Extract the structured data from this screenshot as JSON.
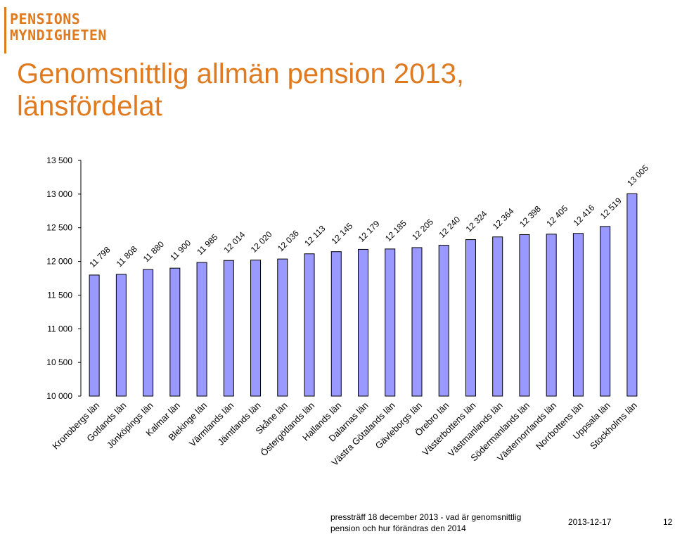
{
  "logo": {
    "line1": "PENSIONS",
    "line2": "MYNDIGHETEN"
  },
  "title": {
    "line1": "Genomsnittlig allmän pension 2013,",
    "line2": "länsfördelat"
  },
  "footer": {
    "text_line1": "pressträff 18 december 2013 - vad är genomsnittlig",
    "text_line2": "pension och hur förändras den 2014",
    "date": "2013-12-17",
    "page": "12"
  },
  "colors": {
    "accent": "#e07a1f",
    "bar_fill": "#9999ff",
    "bar_stroke": "#000000"
  },
  "chart_data": {
    "type": "bar",
    "categories": [
      "Kronobergs län",
      "Gotlands län",
      "Jönköpings län",
      "Kalmar län",
      "Blekinge län",
      "Värmlands län",
      "Jämtlands län",
      "Skåne län",
      "Östergötlands län",
      "Hallands län",
      "Dalarnas län",
      "Västra Götalands län",
      "Gävleborgs län",
      "Örebro län",
      "Västerbottens län",
      "Västmanlands län",
      "Södermanlands län",
      "Västernorrlands län",
      "Norrbottens län",
      "Uppsala län",
      "Stockholms län"
    ],
    "values": [
      11798,
      11808,
      11880,
      11900,
      11985,
      12014,
      12020,
      12036,
      12113,
      12145,
      12179,
      12185,
      12205,
      12240,
      12324,
      12364,
      12398,
      12405,
      12416,
      12519,
      13005
    ],
    "value_labels": [
      "11 798",
      "11 808",
      "11 880",
      "11 900",
      "11 985",
      "12 014",
      "12 020",
      "12 036",
      "12 113",
      "12 145",
      "12 179",
      "12 185",
      "12 205",
      "12 240",
      "12 324",
      "12 364",
      "12 398",
      "12 405",
      "12 416",
      "12 519",
      "13 005"
    ],
    "yticks": [
      10000,
      10500,
      11000,
      11500,
      12000,
      12500,
      13000,
      13500
    ],
    "ytick_labels": [
      "10 000",
      "10 500",
      "11 000",
      "11 500",
      "12 000",
      "12 500",
      "13 000",
      "13 500"
    ],
    "ylim": [
      10000,
      13500
    ],
    "grid": false,
    "legend": "none"
  }
}
